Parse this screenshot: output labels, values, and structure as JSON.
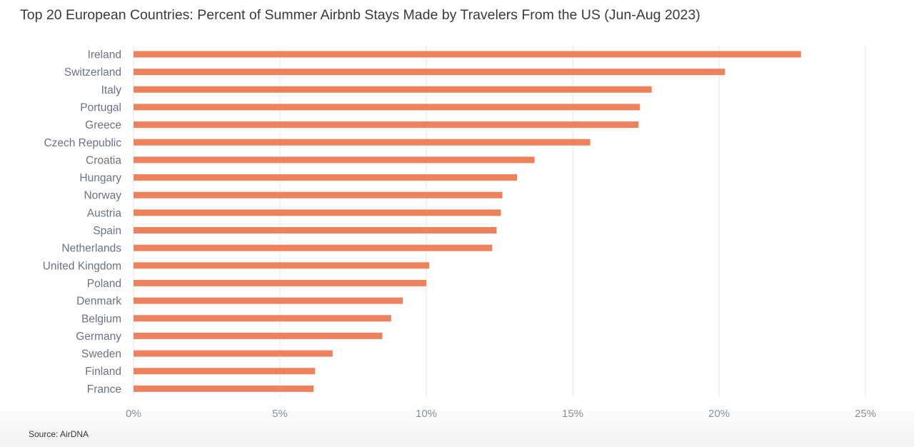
{
  "chart_data": {
    "type": "bar",
    "orientation": "horizontal",
    "title": "Top 20 European Countries: Percent of Summer Airbnb Stays Made by Travelers From the US (Jun-Aug 2023)",
    "xlabel": "",
    "ylabel": "",
    "xlim": [
      0,
      25
    ],
    "xticks": [
      0,
      5,
      10,
      15,
      20,
      25
    ],
    "tick_labels": [
      "0%",
      "5%",
      "10%",
      "15%",
      "20%",
      "25%"
    ],
    "grid": true,
    "bar_color": "#EE825D",
    "categories": [
      "Ireland",
      "Switzerland",
      "Italy",
      "Portugal",
      "Greece",
      "Czech Republic",
      "Croatia",
      "Hungary",
      "Norway",
      "Austria",
      "Spain",
      "Netherlands",
      "United Kingdom",
      "Poland",
      "Denmark",
      "Belgium",
      "Germany",
      "Sweden",
      "Finland",
      "France"
    ],
    "values": [
      22.8,
      20.2,
      17.7,
      17.3,
      17.25,
      15.6,
      13.7,
      13.1,
      12.6,
      12.55,
      12.4,
      12.25,
      10.1,
      10.0,
      9.2,
      8.8,
      8.5,
      6.8,
      6.2,
      6.15
    ]
  },
  "source": "Source: AirDNA"
}
